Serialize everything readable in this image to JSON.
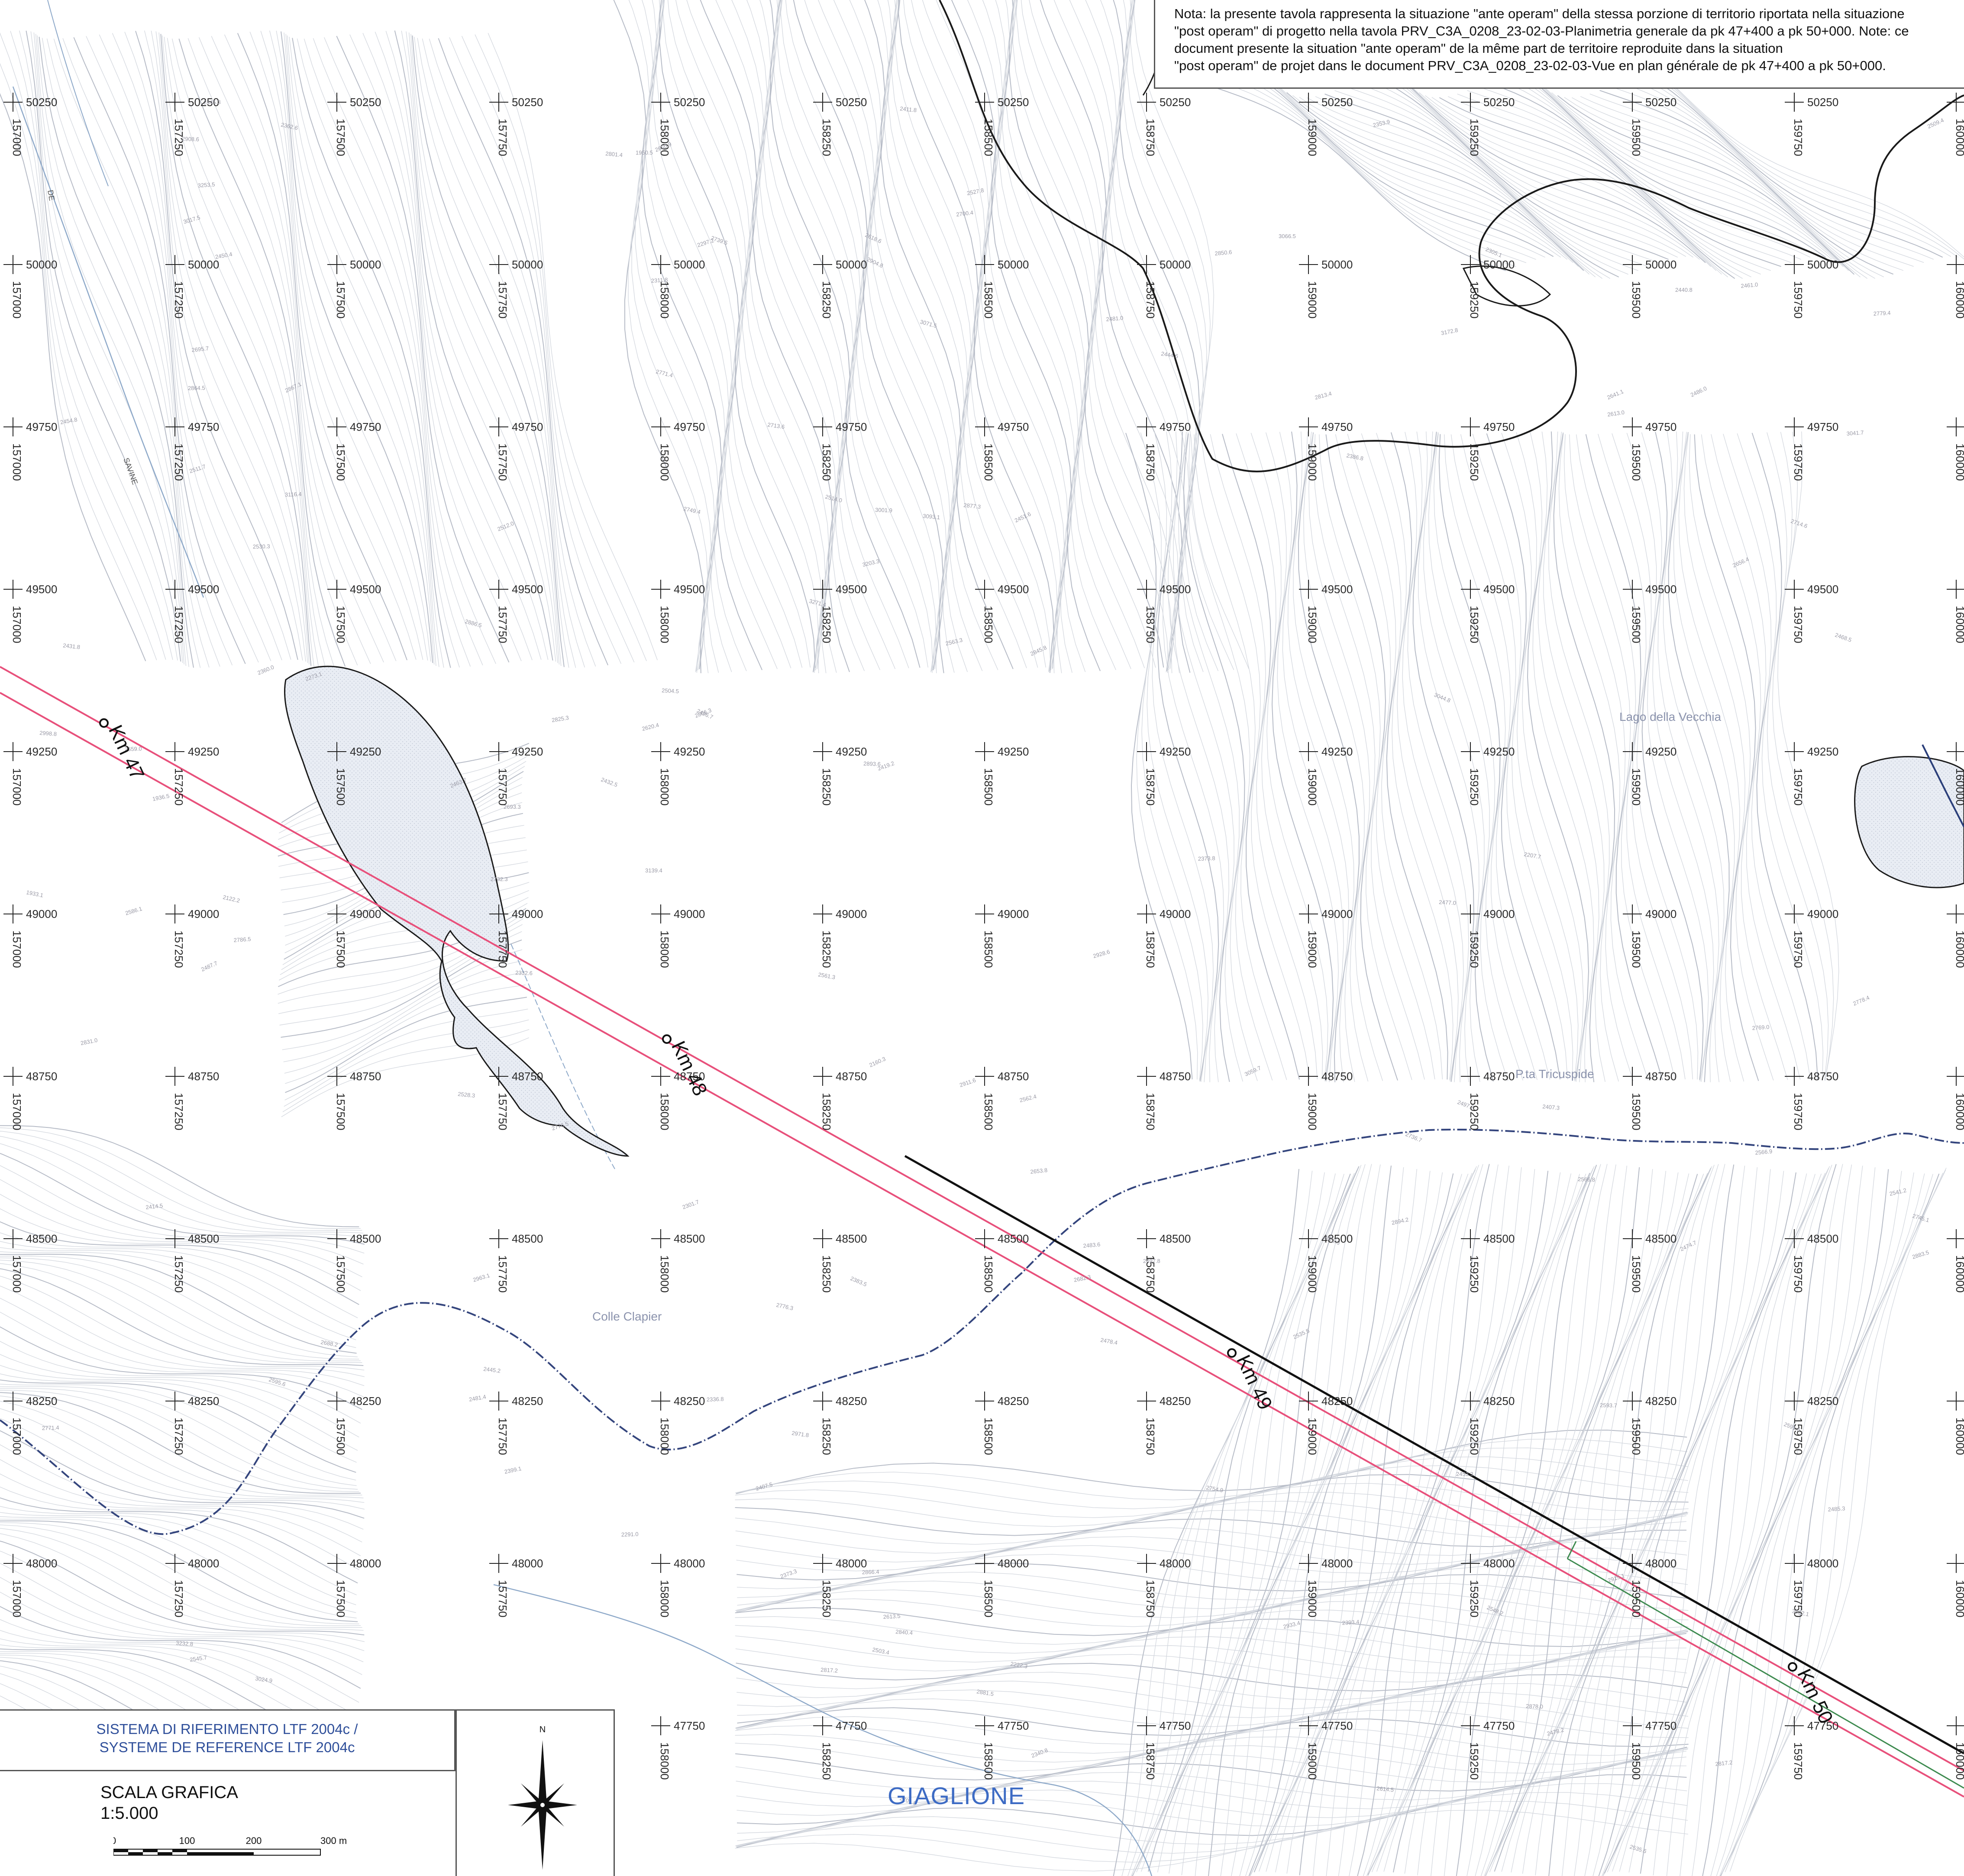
{
  "note": {
    "lines": [
      "Nota: la presente tavola rappresenta la situazione \"ante operam\" della stessa porzione di territorio riportata nella situazione",
      "\"post operam\" di progetto nella tavola PRV_C3A_0208_23-02-03-Planimetria generale da pk 47+400 a pk 50+000. Note: ce",
      "document presente la situation \"ante operam\" de la même part de territoire reproduite dans la situation",
      "\"post operam\" de projet dans le document  PRV_C3A_0208_23-02-03-Vue en plan générale de pk 47+400 a pk 50+000."
    ]
  },
  "legend": {
    "reference_system": [
      "SISTEMA DI RIFERIMENTO LTF 2004c /",
      "SYSTEME DE REFERENCE LTF 2004c"
    ],
    "scale_title": "SCALA GRAFICA",
    "scale_ratio": "1:5.000",
    "scale_ticks": [
      "0",
      "100",
      "200",
      "300 m"
    ],
    "north_label": "N"
  },
  "grid": {
    "eastings": [
      "157000",
      "157250",
      "157500",
      "157750",
      "158000",
      "158250",
      "158500",
      "158750",
      "159000",
      "159250",
      "159500",
      "159750",
      "160000"
    ],
    "northings": [
      "50250",
      "50000",
      "49750",
      "49500",
      "49250",
      "49000",
      "48750",
      "48500",
      "48250",
      "48000",
      "47750"
    ]
  },
  "chainage": [
    "Km 47",
    "Km 48",
    "Km 49",
    "Km 50"
  ],
  "places": {
    "lago": "Lago della Vecchia",
    "tricuspide": "P.ta Tricuspide",
    "colle": "Colle Clapier",
    "comune": "GIAGLIONE",
    "torrente_1": "DE",
    "torrente_2": "SAVINE"
  },
  "spot_heights": [
    "2911.6",
    "2732.3",
    "3232.8",
    "3271.4",
    "3066.5",
    "2963.1",
    "2928.6",
    "2779.4",
    "3041.7",
    "2682.3",
    "3001.9",
    "2771.4",
    "2866.3",
    "2714.6",
    "3093.1",
    "2971.8",
    "3116.4",
    "3253.5",
    "2872.3",
    "3139.4",
    "2866.4",
    "3203.3",
    "3172.8",
    "2548.2",
    "3022.1",
    "3059.7",
    "2620.4",
    "2776.3",
    "2998.8",
    "2904.8",
    "2840.4",
    "3071.5",
    "2656.4",
    "2688.2",
    "2933.4",
    "2641.1",
    "2908.6",
    "2915.1",
    "2527.8",
    "2700.4",
    "2886.5",
    "2867.1",
    "2850.6",
    "2786.5",
    "2771.4",
    "3044.8",
    "2894.2",
    "2739.5",
    "3017.5",
    "2801.4",
    "2893.6",
    "2769.0",
    "3024.9",
    "2881.5",
    "2701.8",
    "2561.3",
    "2878.0",
    "2745.1",
    "2618.6",
    "2483.6",
    "2453.3",
    "2503.4",
    "2659.0",
    "2883.5",
    "2813.4",
    "2845.8",
    "2778.4",
    "2713.6",
    "2481.4",
    "2566.9",
    "2613.0",
    "2817.2",
    "2864.5",
    "2693.3",
    "2650.9",
    "2477.0",
    "2461.0",
    "2463.7",
    "2595.6",
    "2831.0",
    "2749.4",
    "2877.3",
    "2817.2",
    "2485.3",
    "2511.7",
    "2736.7",
    "2825.3",
    "2754.9",
    "2776.5",
    "2614.5",
    "2504.5",
    "2481.0",
    "2593.7",
    "2653.8",
    "2695.7",
    "2591.6",
    "2613.5",
    "2545.7",
    "2512.0",
    "2496.7",
    "2566.8",
    "2586.1",
    "2563.3",
    "2562.4",
    "2497.8",
    "2445.3",
    "2411.8",
    "2450.4",
    "2383.5",
    "2486.0",
    "2535.6",
    "2497.7",
    "2431.8",
    "2414.5",
    "2444.6",
    "2353.9",
    "2360.0",
    "2332.6",
    "2340.8",
    "2297.2",
    "2273.1",
    "2311.8",
    "2291.0",
    "2222.3",
    "2336.8",
    "2399.1",
    "2373.8",
    "2440.8",
    "2514.0",
    "2386.8",
    "2122.2",
    "1936.5",
    "1933.1",
    "1950.5",
    "2160.3",
    "2207.7",
    "2305.1",
    "2478.2",
    "2432.5",
    "2393.4",
    "2407.5",
    "2407.3",
    "2301.7",
    "2419.2",
    "2451.6",
    "2541.2",
    "2445.2",
    "2373.3",
    "2362.6",
    "2474.7",
    "2454.8",
    "2509.4",
    "2528.3",
    "2530.3",
    "2487.7",
    "2478.4",
    "2468.5",
    "2535.5"
  ]
}
